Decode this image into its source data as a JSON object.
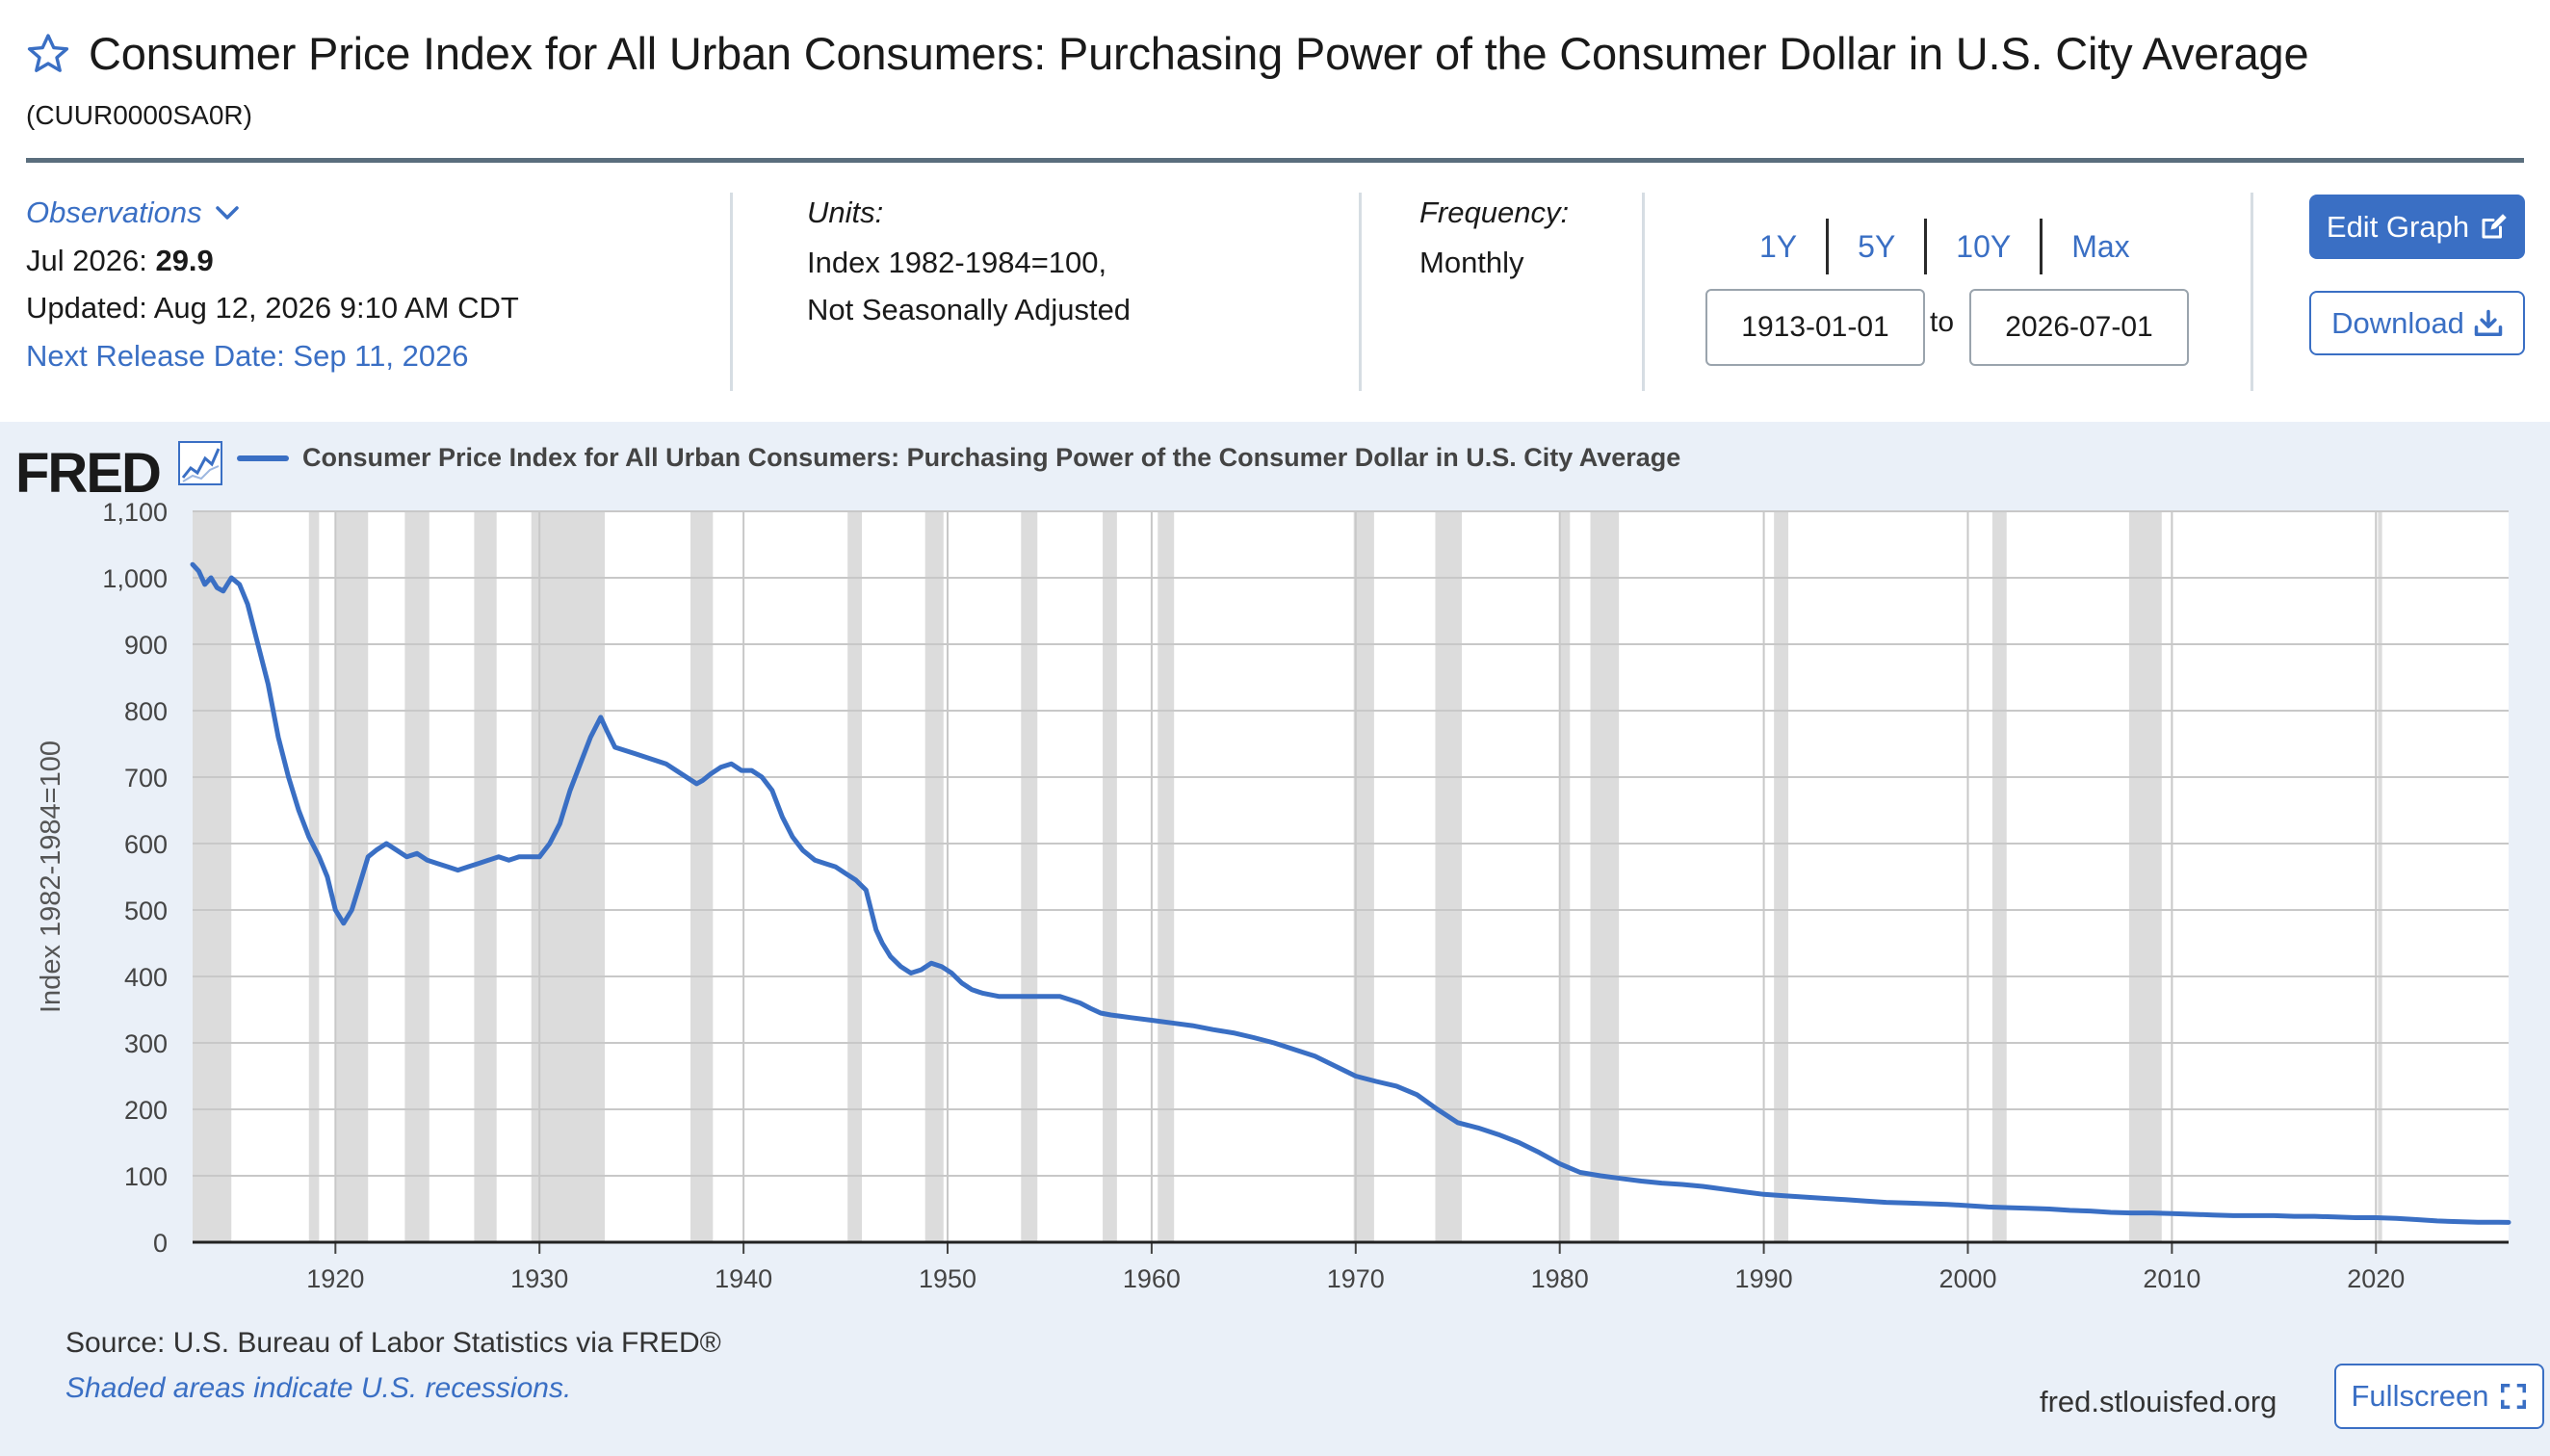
{
  "header": {
    "title": "Consumer Price Index for All Urban Consumers: Purchasing Power of the Consumer Dollar in U.S. City Average",
    "series_id": "(CUUR0000SA0R)"
  },
  "observations": {
    "label": "Observations",
    "latest_period": "Jul 2026:",
    "latest_value": "29.9",
    "updated": "Updated: Aug 12, 2026 9:10 AM CDT",
    "next_release": "Next Release Date: Sep 11, 2026"
  },
  "units": {
    "label": "Units:",
    "line1": "Index 1982-1984=100,",
    "line2": "Not Seasonally Adjusted"
  },
  "frequency": {
    "label": "Frequency:",
    "value": "Monthly"
  },
  "range": {
    "buttons": [
      "1Y",
      "5Y",
      "10Y",
      "Max"
    ],
    "start": "1913-01-01",
    "to_label": "to",
    "end": "2026-07-01"
  },
  "actions": {
    "edit": "Edit Graph",
    "download": "Download",
    "fullscreen": "Fullscreen"
  },
  "footer": {
    "source": "Source: U.S. Bureau of Labor Statistics via FRED®",
    "shade_note": "Shaded areas indicate U.S. recessions.",
    "url": "fred.stlouisfed.org"
  },
  "colors": {
    "accent": "#3a6fc4",
    "panel_bg": "#eaf0f8",
    "recession": "#dcdcdc",
    "rule": "#5a6e7d"
  },
  "icons": {
    "favorite": "star-icon",
    "observations": "chevron-down-icon",
    "edit": "edit-icon",
    "download": "download-icon",
    "fullscreen": "fullscreen-icon",
    "logo": "line-chart-icon"
  },
  "brand": "FRED",
  "chart_data": {
    "type": "line",
    "title": "",
    "legend": "Consumer Price Index for All Urban Consumers: Purchasing Power of the Consumer Dollar in U.S. City Average",
    "xlabel": "",
    "ylabel": "Index 1982-1984=100",
    "xlim": [
      1913.0,
      2026.5
    ],
    "ylim": [
      0,
      1100
    ],
    "yticks": [
      0,
      100,
      200,
      300,
      400,
      500,
      600,
      700,
      800,
      900,
      1000,
      1100
    ],
    "ytick_labels": [
      "0",
      "100",
      "200",
      "300",
      "400",
      "500",
      "600",
      "700",
      "800",
      "900",
      "1,000",
      "1,100"
    ],
    "xticks": [
      1920,
      1930,
      1940,
      1950,
      1960,
      1970,
      1980,
      1990,
      2000,
      2010,
      2020
    ],
    "xtick_labels": [
      "1920",
      "1930",
      "1940",
      "1950",
      "1960",
      "1970",
      "1980",
      "1990",
      "2000",
      "2010",
      "2020"
    ],
    "grid": true,
    "recessions": [
      [
        1913.0,
        1914.9
      ],
      [
        1918.7,
        1919.2
      ],
      [
        1920.0,
        1921.6
      ],
      [
        1923.4,
        1924.6
      ],
      [
        1926.8,
        1927.9
      ],
      [
        1929.6,
        1933.2
      ],
      [
        1937.4,
        1938.5
      ],
      [
        1945.1,
        1945.8
      ],
      [
        1948.9,
        1949.8
      ],
      [
        1953.6,
        1954.4
      ],
      [
        1957.6,
        1958.3
      ],
      [
        1960.3,
        1961.1
      ],
      [
        1969.9,
        1970.9
      ],
      [
        1973.9,
        1975.2
      ],
      [
        1980.0,
        1980.5
      ],
      [
        1981.5,
        1982.9
      ],
      [
        1990.5,
        1991.2
      ],
      [
        2001.2,
        2001.9
      ],
      [
        2007.9,
        2009.5
      ],
      [
        2020.1,
        2020.3
      ]
    ],
    "series": [
      {
        "name": "Consumer Price Index for All Urban Consumers: Purchasing Power of the Consumer Dollar in U.S. City Average",
        "x": [
          1913.0,
          1913.3,
          1913.6,
          1913.9,
          1914.2,
          1914.5,
          1914.9,
          1915.3,
          1915.7,
          1916.2,
          1916.7,
          1917.2,
          1917.7,
          1918.2,
          1918.7,
          1919.2,
          1919.6,
          1920.0,
          1920.4,
          1920.8,
          1921.2,
          1921.6,
          1922.0,
          1922.5,
          1923.0,
          1923.5,
          1924.0,
          1924.5,
          1925.0,
          1925.5,
          1926.0,
          1926.5,
          1927.0,
          1927.5,
          1928.0,
          1928.5,
          1929.0,
          1929.5,
          1930.0,
          1930.5,
          1931.0,
          1931.5,
          1932.0,
          1932.5,
          1933.0,
          1933.3,
          1933.7,
          1934.2,
          1934.7,
          1935.2,
          1935.7,
          1936.2,
          1936.7,
          1937.2,
          1937.7,
          1938.0,
          1938.4,
          1938.9,
          1939.4,
          1939.9,
          1940.4,
          1940.9,
          1941.4,
          1941.9,
          1942.4,
          1942.9,
          1943.5,
          1944.0,
          1944.5,
          1945.0,
          1945.5,
          1946.0,
          1946.5,
          1946.8,
          1947.2,
          1947.7,
          1948.2,
          1948.7,
          1949.2,
          1949.7,
          1950.2,
          1950.7,
          1951.2,
          1951.7,
          1952.5,
          1953.5,
          1954.5,
          1955.5,
          1956.0,
          1956.5,
          1957.0,
          1957.5,
          1958.0,
          1958.5,
          1959.0,
          1960.0,
          1961.0,
          1962.0,
          1963.0,
          1964.0,
          1965.0,
          1966.0,
          1967.0,
          1968.0,
          1969.0,
          1970.0,
          1971.0,
          1972.0,
          1973.0,
          1974.0,
          1975.0,
          1976.0,
          1977.0,
          1978.0,
          1979.0,
          1980.0,
          1981.0,
          1982.0,
          1983.0,
          1984.0,
          1985.0,
          1986.0,
          1987.0,
          1988.0,
          1989.0,
          1990.0,
          1991.0,
          1992.0,
          1993.0,
          1994.0,
          1995.0,
          1996.0,
          1997.0,
          1998.0,
          1999.0,
          2000.0,
          2001.0,
          2002.0,
          2003.0,
          2004.0,
          2005.0,
          2006.0,
          2007.0,
          2008.0,
          2009.0,
          2010.0,
          2011.0,
          2012.0,
          2013.0,
          2014.0,
          2015.0,
          2016.0,
          2017.0,
          2018.0,
          2019.0,
          2020.0,
          2021.0,
          2022.0,
          2023.0,
          2024.0,
          2025.0,
          2026.0,
          2026.5
        ],
        "y": [
          1020,
          1010,
          990,
          1000,
          985,
          980,
          1000,
          990,
          960,
          900,
          840,
          760,
          700,
          650,
          610,
          580,
          550,
          500,
          480,
          500,
          540,
          580,
          590,
          600,
          590,
          580,
          585,
          575,
          570,
          565,
          560,
          565,
          570,
          575,
          580,
          575,
          580,
          580,
          580,
          600,
          630,
          680,
          720,
          760,
          790,
          770,
          745,
          740,
          735,
          730,
          725,
          720,
          710,
          700,
          690,
          695,
          705,
          715,
          720,
          710,
          710,
          700,
          680,
          640,
          610,
          590,
          575,
          570,
          565,
          555,
          545,
          530,
          470,
          450,
          430,
          415,
          405,
          410,
          420,
          415,
          405,
          390,
          380,
          375,
          370,
          370,
          370,
          370,
          365,
          360,
          352,
          345,
          342,
          340,
          338,
          334,
          330,
          326,
          320,
          315,
          308,
          300,
          290,
          280,
          265,
          250,
          242,
          235,
          222,
          200,
          180,
          172,
          162,
          150,
          135,
          118,
          105,
          100,
          96,
          92,
          89,
          87,
          84,
          80,
          76,
          72,
          70,
          68,
          66,
          64,
          62,
          60,
          59,
          58,
          57,
          55,
          53,
          52,
          51,
          50,
          48,
          47,
          45,
          44,
          44,
          43,
          42,
          41,
          40,
          40,
          40,
          39,
          39,
          38,
          37,
          37,
          36,
          34,
          32,
          31,
          30,
          30,
          29.9
        ]
      }
    ]
  }
}
